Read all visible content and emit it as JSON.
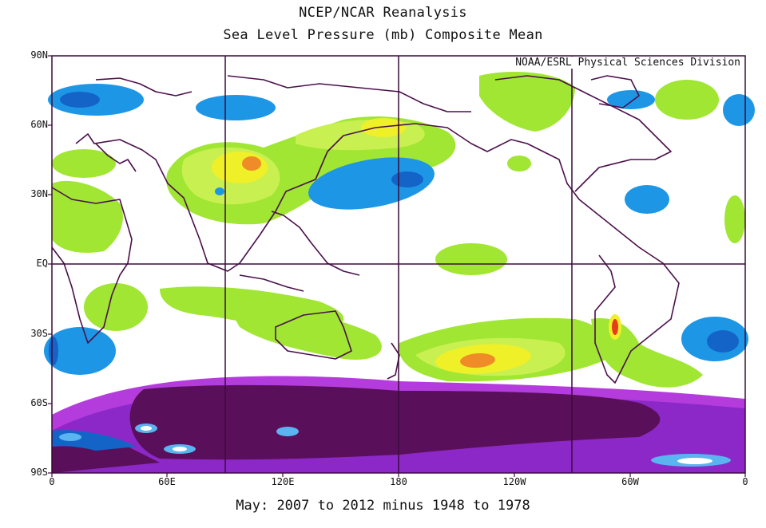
{
  "title_line1": "NCEP/NCAR Reanalysis",
  "title_line2": "Sea Level Pressure (mb) Composite Mean",
  "credit": "NOAA/ESRL Physical Sciences Division",
  "footer": "May: 2007 to 2012 minus 1948 to 1978",
  "y_ticks": [
    "90N",
    "60N",
    "30N",
    "EQ",
    "30S",
    "60S",
    "90S"
  ],
  "x_ticks": [
    "0",
    "60E",
    "120E",
    "180",
    "120W",
    "60W",
    "0"
  ],
  "palette": {
    "light_green": "#a0e632",
    "green_yellow": "#c8f050",
    "yellow": "#f0f028",
    "orange": "#f08c28",
    "red": "#e63c1e",
    "blue": "#1e96e6",
    "dark_blue": "#1464c8",
    "light_blue": "#5ab4f0",
    "purple": "#8c28c8",
    "violet": "#b43cdc",
    "dark_purple": "#5a0f5a",
    "white": "#ffffff",
    "coast": "#4b0f4b",
    "grid": "#3c0a3c"
  }
}
